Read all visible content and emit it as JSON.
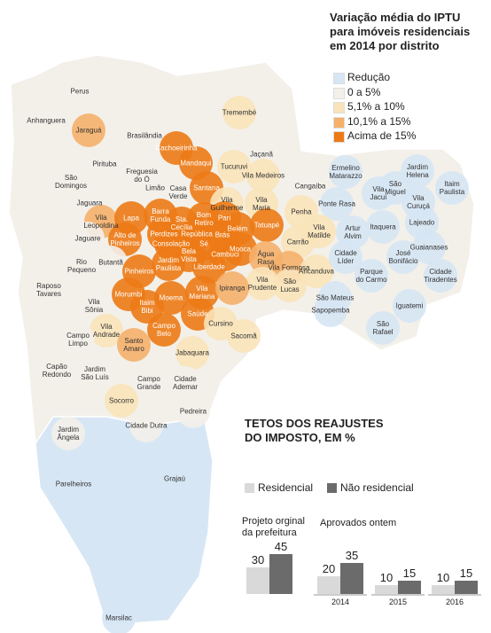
{
  "map": {
    "title": "Variação média do IPTU\npara imóveis residenciais\nem 2014 por distrito",
    "legend": [
      {
        "label": "Redução",
        "color": "#d6e6f4"
      },
      {
        "label": "0 a 5%",
        "color": "#f3f0ea"
      },
      {
        "label": "5,1% a 10%",
        "color": "#fae3b9"
      },
      {
        "label": "10,1% a 15%",
        "color": "#f5b06a"
      },
      {
        "label": "Acima de 15%",
        "color": "#ec7a16"
      }
    ],
    "districts": [
      {
        "name": "Perus",
        "range": "0 a 5%"
      },
      {
        "name": "Anhanguera",
        "range": "0 a 5%"
      },
      {
        "name": "Jaraguá",
        "range": "10,1% a 15%"
      },
      {
        "name": "Brasilândia",
        "range": "0 a 5%"
      },
      {
        "name": "Cachoeirinha",
        "range": "Acima de 15%"
      },
      {
        "name": "Tremembé",
        "range": "5,1% a 10%"
      },
      {
        "name": "Mandaqui",
        "range": "Acima de 15%"
      },
      {
        "name": "Jaçanã",
        "range": "0 a 5%"
      },
      {
        "name": "Pirituba",
        "range": "0 a 5%"
      },
      {
        "name": "Freguesia\ndo Ó",
        "range": "0 a 5%"
      },
      {
        "name": "Tucuruvi",
        "range": "5,1% a 10%"
      },
      {
        "name": "Vila Medeiros",
        "range": "5,1% a 10%"
      },
      {
        "name": "Ermelino\nMatarazzo",
        "range": "Redução"
      },
      {
        "name": "Jardim\nHelena",
        "range": "Redução"
      },
      {
        "name": "São\nDomingos",
        "range": "0 a 5%"
      },
      {
        "name": "Limão",
        "range": "0 a 5%"
      },
      {
        "name": "Casa\nVerde",
        "range": "0 a 5%"
      },
      {
        "name": "Santana",
        "range": "Acima de 15%"
      },
      {
        "name": "Cangaíba",
        "range": "0 a 5%"
      },
      {
        "name": "São\nMiguel",
        "range": "Redução"
      },
      {
        "name": "Itaim\nPaulista",
        "range": "Redução"
      },
      {
        "name": "Jaguara",
        "range": "0 a 5%"
      },
      {
        "name": "Vila\nGuilherme",
        "range": "5,1% a 10%"
      },
      {
        "name": "Vila\nMaria",
        "range": "5,1% a 10%"
      },
      {
        "name": "Ponte Rasa",
        "range": "Redução"
      },
      {
        "name": "Vila\nJacuí",
        "range": "Redução"
      },
      {
        "name": "Vila\nCuruçá",
        "range": "Redução"
      },
      {
        "name": "Vila\nLeopoldina",
        "range": "10,1% a 15%"
      },
      {
        "name": "Lapa",
        "range": "Acima de 15%"
      },
      {
        "name": "Barra\nFunda",
        "range": "Acima de 15%"
      },
      {
        "name": "Bom\nRetiro",
        "range": "Acima de 15%"
      },
      {
        "name": "Sta.\nCecília",
        "range": "Acima de 15%"
      },
      {
        "name": "Pari",
        "range": "Acima de 15%"
      },
      {
        "name": "Penha",
        "range": "5,1% a 10%"
      },
      {
        "name": "Lajeado",
        "range": "Redução"
      },
      {
        "name": "Jaguare",
        "range": "0 a 5%"
      },
      {
        "name": "Alto de\nPinheiros",
        "range": "Acima de 15%"
      },
      {
        "name": "Perdizes",
        "range": "Acima de 15%"
      },
      {
        "name": "República",
        "range": "Acima de 15%"
      },
      {
        "name": "Brás",
        "range": "Acima de 15%"
      },
      {
        "name": "Belém",
        "range": "Acima de 15%"
      },
      {
        "name": "Tatuapé",
        "range": "Acima de 15%"
      },
      {
        "name": "Artur\nAlvim",
        "range": "Redução"
      },
      {
        "name": "Itaquera",
        "range": "Redução"
      },
      {
        "name": "Vila\nMatilde",
        "range": "5,1% a 10%"
      },
      {
        "name": "Carrão",
        "range": "5,1% a 10%"
      },
      {
        "name": "Guaianases",
        "range": "Redução"
      },
      {
        "name": "Consolação",
        "range": "Acima de 15%"
      },
      {
        "name": "Sé",
        "range": "Acima de 15%"
      },
      {
        "name": "Bela\nVista",
        "range": "Acima de 15%"
      },
      {
        "name": "Cambuci",
        "range": "Acima de 15%"
      },
      {
        "name": "Mooca",
        "range": "Acima de 15%"
      },
      {
        "name": "Rio\nPequeno",
        "range": "0 a 5%"
      },
      {
        "name": "Butantã",
        "range": "0 a 5%"
      },
      {
        "name": "Jardim\nPaulista",
        "range": "Acima de 15%"
      },
      {
        "name": "Liberdade",
        "range": "Acima de 15%"
      },
      {
        "name": "Água\nRasa",
        "range": "10,1% a 15%"
      },
      {
        "name": "Vila Formosa",
        "range": "10,1% a 15%"
      },
      {
        "name": "Aricanduva",
        "range": "5,1% a 10%"
      },
      {
        "name": "José\nBonifácio",
        "range": "Redução"
      },
      {
        "name": "Cidade\nLíder",
        "range": "Redução"
      },
      {
        "name": "Parque\ndo Carmo",
        "range": "Redução"
      },
      {
        "name": "Cidade\nTiradentes",
        "range": "Redução"
      },
      {
        "name": "Raposo\nTavares",
        "range": "0 a 5%"
      },
      {
        "name": "Pinheiros",
        "range": "Acima de 15%"
      },
      {
        "name": "Vila\nPrudente",
        "range": "5,1% a 10%"
      },
      {
        "name": "São\nLucas",
        "range": "5,1% a 10%"
      },
      {
        "name": "Morumbi",
        "range": "Acima de 15%"
      },
      {
        "name": "Moema",
        "range": "Acima de 15%"
      },
      {
        "name": "Vila\nMariana",
        "range": "Acima de 15%"
      },
      {
        "name": "Ipiranga",
        "range": "10,1% a 15%"
      },
      {
        "name": "Vila\nSônia",
        "range": "0 a 5%"
      },
      {
        "name": "Itaim\nBibi",
        "range": "Acima de 15%"
      },
      {
        "name": "Saúde",
        "range": "Acima de 15%"
      },
      {
        "name": "Cursino",
        "range": "5,1% a 10%"
      },
      {
        "name": "São Mateus",
        "range": "Redução"
      },
      {
        "name": "Sapopemba",
        "range": "Redução"
      },
      {
        "name": "Iguatemi",
        "range": "Redução"
      },
      {
        "name": "São\nRafael",
        "range": "Redução"
      },
      {
        "name": "Vila\nAndrade",
        "range": "5,1% a 10%"
      },
      {
        "name": "Campo\nBelo",
        "range": "Acima de 15%"
      },
      {
        "name": "Sacomã",
        "range": "5,1% a 10%"
      },
      {
        "name": "Campo\nLimpo",
        "range": "0 a 5%"
      },
      {
        "name": "Santo\nAmaro",
        "range": "10,1% a 15%"
      },
      {
        "name": "Jabaquara",
        "range": "5,1% a 10%"
      },
      {
        "name": "Capão\nRedondo",
        "range": "0 a 5%"
      },
      {
        "name": "Jardim\nSão Luís",
        "range": "0 a 5%"
      },
      {
        "name": "Campo\nGrande",
        "range": "0 a 5%"
      },
      {
        "name": "Cidade\nAdemar",
        "range": "0 a 5%"
      },
      {
        "name": "Socorro",
        "range": "5,1% a 10%"
      },
      {
        "name": "Pedreira",
        "range": "0 a 5%"
      },
      {
        "name": "Cidade Dutra",
        "range": "0 a 5%"
      },
      {
        "name": "Jardim\nÂngela",
        "range": "0 a 5%"
      },
      {
        "name": "Grajaú",
        "range": "Redução"
      },
      {
        "name": "Parelheiros",
        "range": "Redução"
      },
      {
        "name": "Marsilac",
        "range": "Redução"
      }
    ]
  },
  "chart_data": {
    "type": "bar",
    "title": "TETOS DOS REAJUSTES\nDO IMPOSTO, EM %",
    "annotations": [
      "Projeto orginal\nda prefeitura",
      "Aprovados ontem"
    ],
    "categories": [
      null,
      "2014",
      "2015",
      "2016"
    ],
    "series": [
      {
        "name": "Residencial",
        "color": "#d9d9d9",
        "values": [
          30,
          20,
          10,
          10
        ]
      },
      {
        "name": "Não residencial",
        "color": "#6b6b6b",
        "values": [
          45,
          35,
          15,
          15
        ]
      }
    ]
  }
}
